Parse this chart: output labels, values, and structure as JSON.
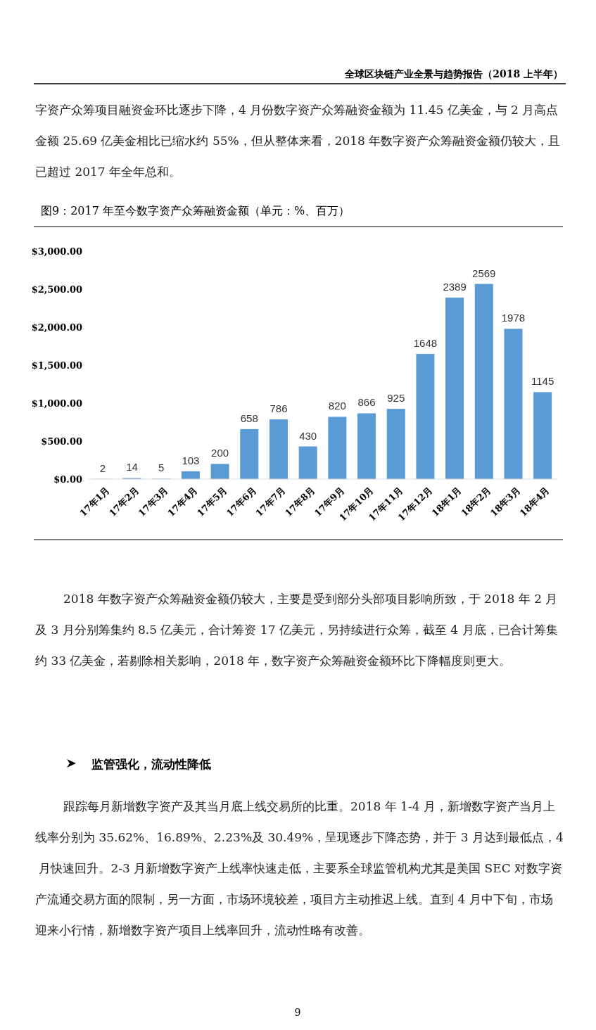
{
  "chart_data": {
    "type": "bar",
    "title": "图9：2017 年至今数字资产众筹融资金额（单元：%、百万）",
    "categories": [
      "17年1月",
      "17年2月",
      "17年3月",
      "17年4月",
      "17年5月",
      "17年6月",
      "17年7月",
      "17年8月",
      "17年9月",
      "17年10月",
      "17年11月",
      "17年12月",
      "18年1月",
      "18年2月",
      "18年3月",
      "18年4月"
    ],
    "values": [
      2,
      14,
      5,
      103,
      200,
      658,
      786,
      430,
      820,
      866,
      925,
      1648,
      2389,
      2569,
      1978,
      1145
    ],
    "color": "#5b9bd5",
    "ylim": [
      0,
      3000
    ],
    "yticks": [
      {
        "value": 0,
        "label": "$0.00"
      },
      {
        "value": 500,
        "label": "$500.00"
      },
      {
        "value": 1000,
        "label": "$1,000.00"
      },
      {
        "value": 1500,
        "label": "$1,500.00"
      },
      {
        "value": 2000,
        "label": "$2,000.00"
      },
      {
        "value": 2500,
        "label": "$2,500.00"
      },
      {
        "value": 3000,
        "label": "$3,000.00"
      }
    ],
    "data_labels": true,
    "grid": false,
    "annotations": [
      "全球区块链产业全景与趋势报告（2018 上半年）",
      "字资产众筹项目融资金环比逐步下降，4 月份数字资产众筹融资金额为 11.45 亿美金，与 2 月高点金额 25.69 亿美金相比已缩水约 55%，但从整体来看，2018 年数字资产众筹融资金额仍较大，且已超过 2017 年全年总和。",
      "2018 年数字资产众筹融资金额仍较大，主要是受到部分头部项目影响所致，于 2018 年 2 月及 3 月分别筹集约 8.5 亿美元，合计筹资 17 亿美元，另持续进行众筹，截至 4 月底，已合计筹集约 33 亿美金，若剔除相关影响，2018 年，数字资产众筹融资金额环比下降幅度则更大。",
      "监管强化，流动性降低",
      "跟踪每月新增数字资产及其当月底上线交易所的比重。2018 年 1-4 月，新增数字资产当月上线率分别为 35.62%、16.89%、2.23%及 30.49%，呈现逐步下降态势，并于 3 月达到最低点，4 月快速回升。2-3 月新增数字资产上线率快速走低，主要系全球监管机构尤其是美国 SEC 对数字资产流通交易方面的限制，另一方面，市场环境较差，项目方主动推迟上线。直到 4 月中下旬，市场迎来小行情，新增数字资产项目上线率回升，流动性略有改善。",
      "9"
    ]
  }
}
